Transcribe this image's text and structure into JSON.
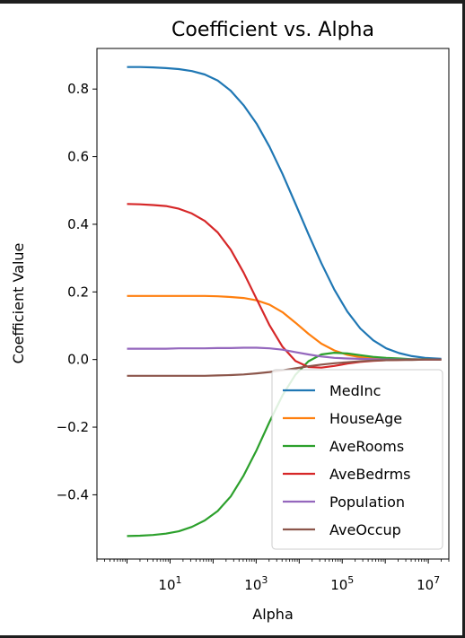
{
  "chart_data": {
    "type": "line",
    "title": "Coefficient vs. Alpha",
    "xlabel": "Alpha",
    "ylabel": "Coefficient Value",
    "xscale": "log",
    "xlim": [
      0.2,
      30000000
    ],
    "ylim": [
      -0.59,
      0.92
    ],
    "x_ticks": [
      {
        "value": 10,
        "base": "10",
        "exp": "1"
      },
      {
        "value": 1000,
        "base": "10",
        "exp": "3"
      },
      {
        "value": 100000,
        "base": "10",
        "exp": "5"
      },
      {
        "value": 10000000,
        "base": "10",
        "exp": "7"
      }
    ],
    "y_ticks": [
      {
        "value": 0.8,
        "label": "0.8"
      },
      {
        "value": 0.6,
        "label": "0.6"
      },
      {
        "value": 0.4,
        "label": "0.4"
      },
      {
        "value": 0.2,
        "label": "0.2"
      },
      {
        "value": 0.0,
        "label": "0.0"
      },
      {
        "value": -0.2,
        "label": "−0.2"
      },
      {
        "value": -0.4,
        "label": "−0.4"
      }
    ],
    "grid": false,
    "legend_position": "lower-right",
    "x": [
      1,
      2,
      4,
      8,
      16,
      32,
      64,
      128,
      256,
      512,
      1024,
      2048,
      4096,
      8192,
      16384,
      32768,
      65536,
      131072,
      262144,
      524288,
      1048576,
      2097152,
      4194304,
      8388608,
      20000000
    ],
    "series": [
      {
        "name": "MedInc",
        "color": "#1f77b4",
        "values": [
          0.865,
          0.865,
          0.864,
          0.862,
          0.859,
          0.853,
          0.843,
          0.825,
          0.795,
          0.752,
          0.698,
          0.629,
          0.549,
          0.461,
          0.371,
          0.285,
          0.207,
          0.142,
          0.092,
          0.057,
          0.033,
          0.019,
          0.01,
          0.005,
          0.002
        ]
      },
      {
        "name": "HouseAge",
        "color": "#ff7f0e",
        "values": [
          0.188,
          0.188,
          0.188,
          0.188,
          0.188,
          0.188,
          0.188,
          0.187,
          0.185,
          0.182,
          0.175,
          0.162,
          0.14,
          0.109,
          0.076,
          0.047,
          0.027,
          0.014,
          0.007,
          0.004,
          0.002,
          0.001,
          0.001,
          0.0,
          0.0
        ]
      },
      {
        "name": "AveRooms",
        "color": "#2ca02c",
        "values": [
          -0.522,
          -0.521,
          -0.519,
          -0.515,
          -0.508,
          -0.495,
          -0.476,
          -0.448,
          -0.405,
          -0.343,
          -0.268,
          -0.184,
          -0.106,
          -0.045,
          -0.005,
          0.015,
          0.02,
          0.018,
          0.013,
          0.008,
          0.005,
          0.003,
          0.001,
          0.001,
          0.0
        ]
      },
      {
        "name": "AveBedrms",
        "color": "#d62728",
        "values": [
          0.46,
          0.459,
          0.457,
          0.454,
          0.446,
          0.432,
          0.41,
          0.376,
          0.325,
          0.257,
          0.179,
          0.101,
          0.038,
          -0.004,
          -0.022,
          -0.024,
          -0.019,
          -0.012,
          -0.007,
          -0.004,
          -0.002,
          -0.001,
          0.0,
          0.0,
          0.0
        ]
      },
      {
        "name": "Population",
        "color": "#9467bd",
        "values": [
          0.032,
          0.032,
          0.032,
          0.032,
          0.033,
          0.033,
          0.033,
          0.034,
          0.034,
          0.035,
          0.035,
          0.033,
          0.029,
          0.022,
          0.015,
          0.009,
          0.005,
          0.003,
          0.002,
          0.001,
          0.0,
          0.0,
          0.0,
          0.0,
          0.0
        ]
      },
      {
        "name": "AveOccup",
        "color": "#8c564b",
        "values": [
          -0.048,
          -0.048,
          -0.048,
          -0.048,
          -0.048,
          -0.048,
          -0.048,
          -0.047,
          -0.046,
          -0.044,
          -0.041,
          -0.037,
          -0.032,
          -0.026,
          -0.02,
          -0.015,
          -0.011,
          -0.008,
          -0.005,
          -0.003,
          -0.002,
          -0.001,
          -0.001,
          0.0,
          0.0
        ]
      }
    ]
  }
}
